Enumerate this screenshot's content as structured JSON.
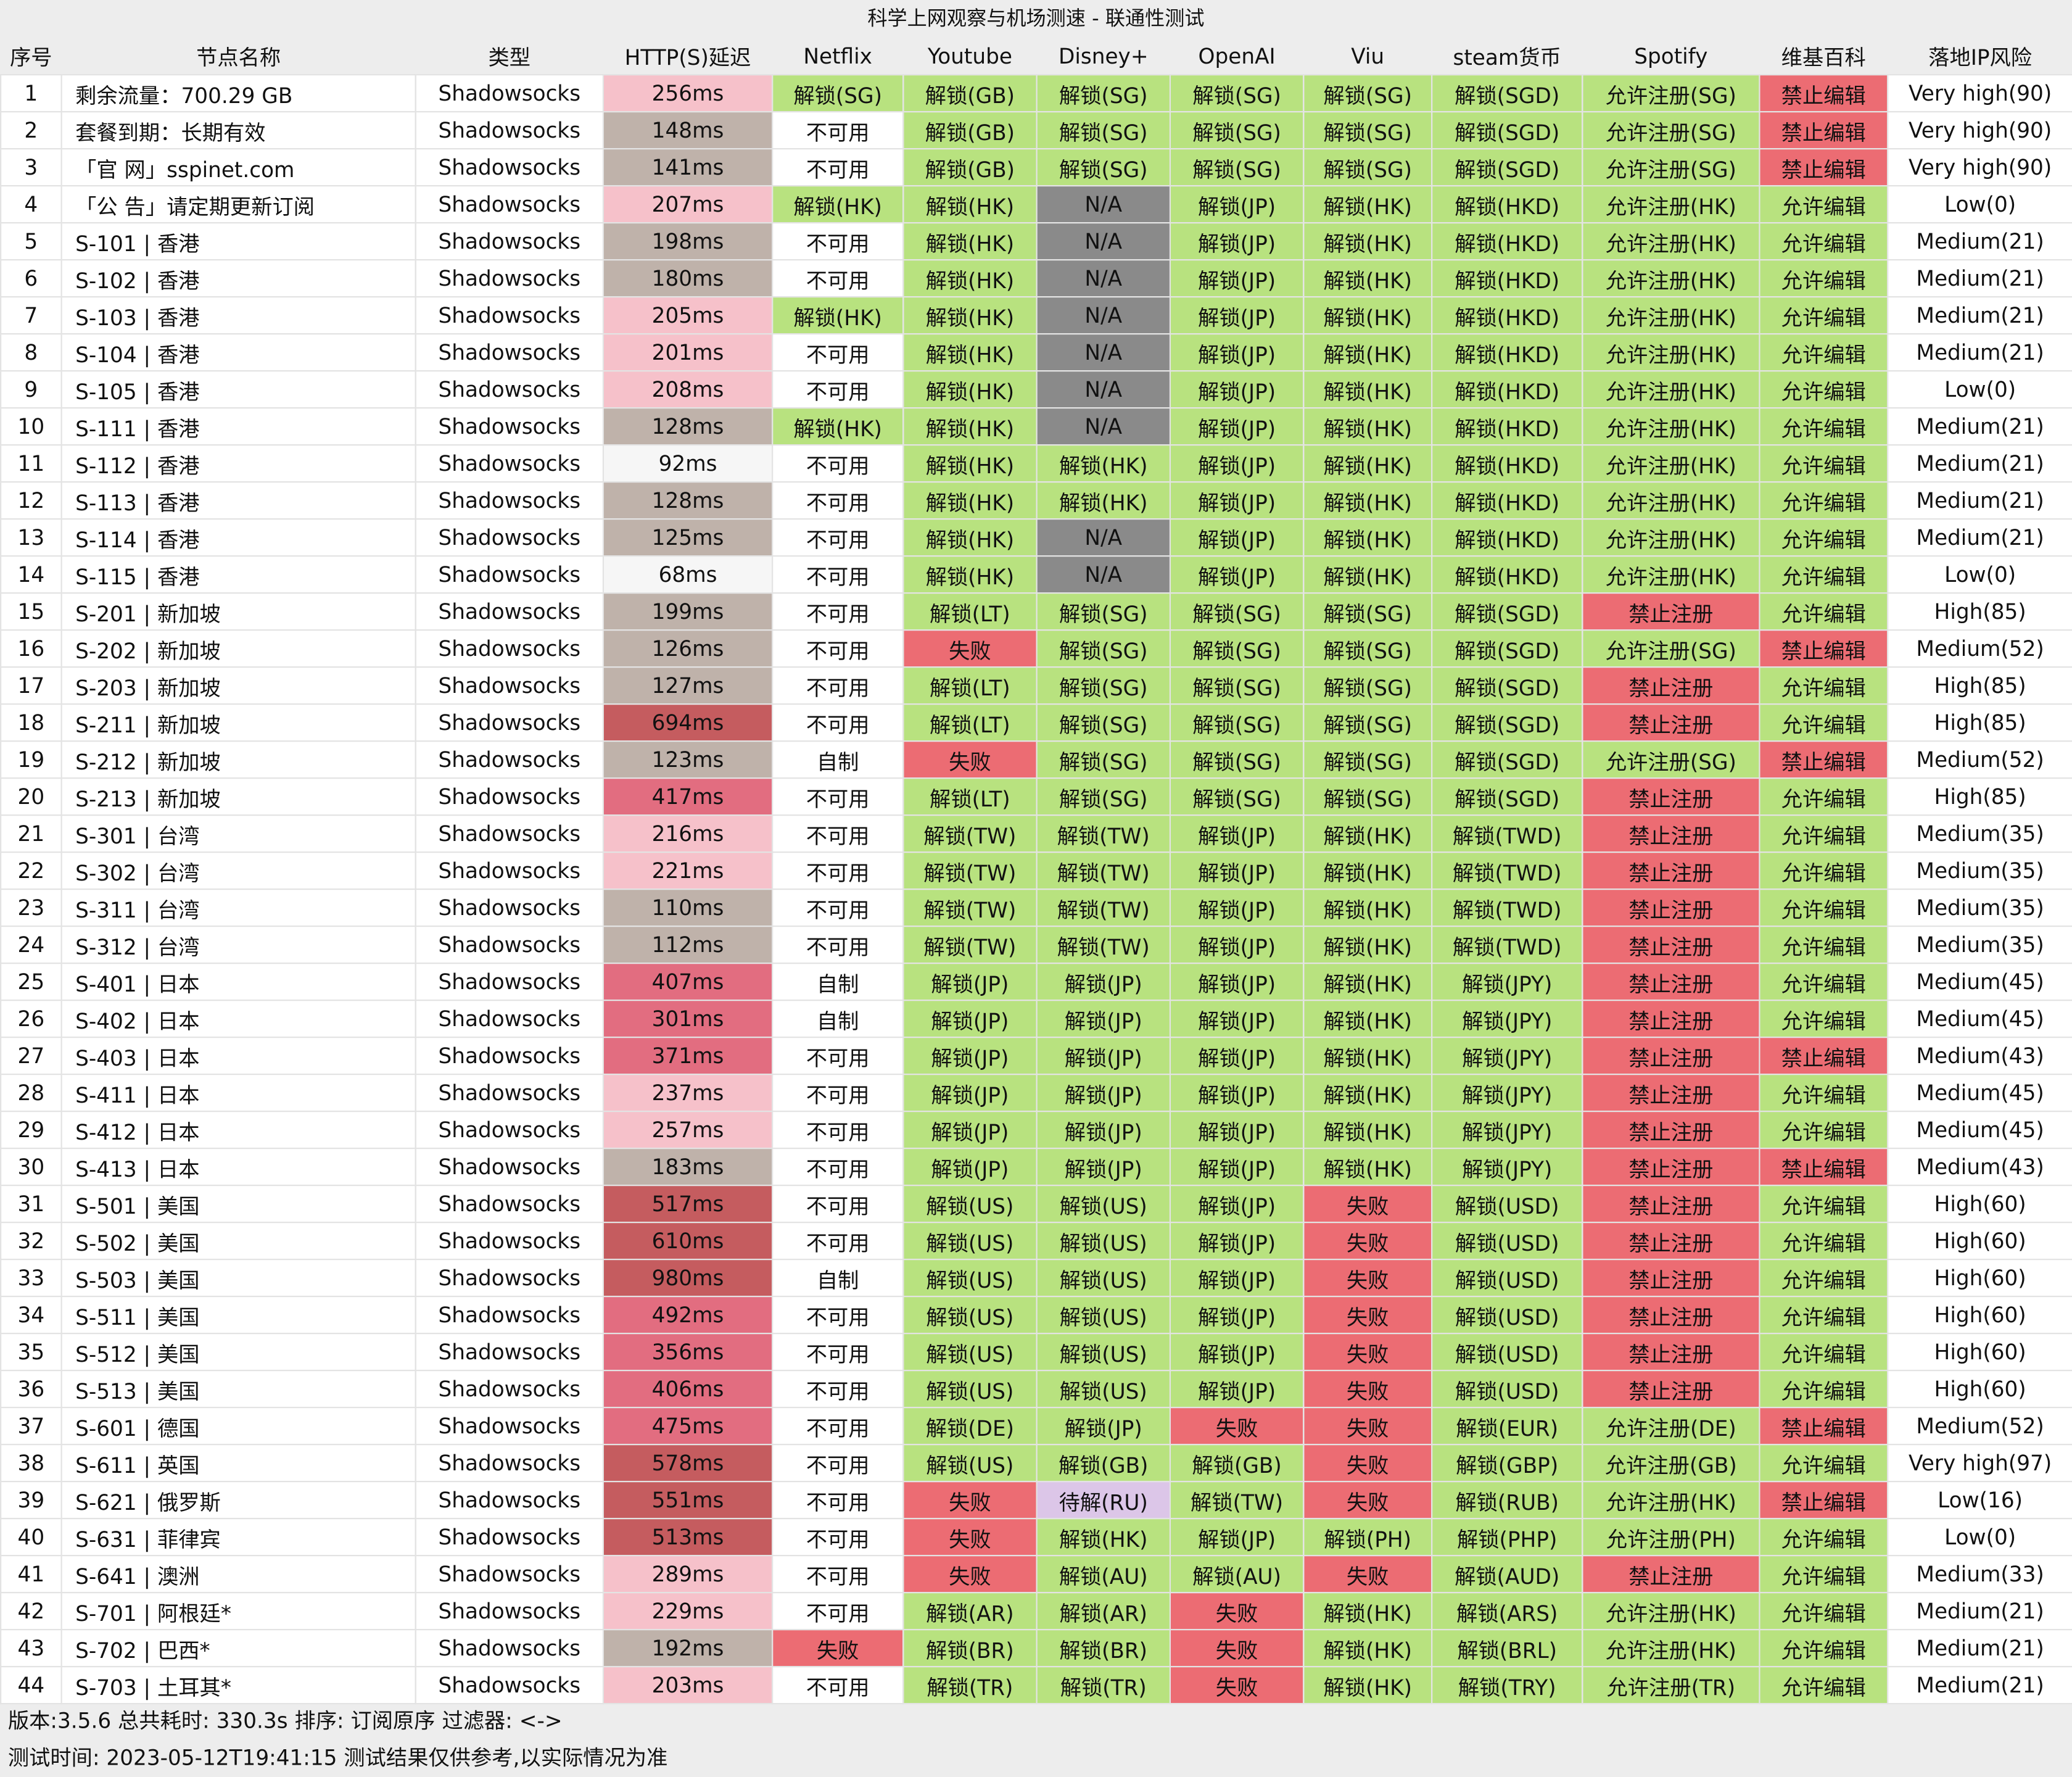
{
  "title": "科学上网观察与机场测速 - 联通性测试",
  "headers": [
    "序号",
    "节点名称",
    "类型",
    "HTTP(S)延迟",
    "Netflix",
    "Youtube",
    "Disney+",
    "OpenAI",
    "Viu",
    "steam货币",
    "Spotify",
    "维基百科",
    "落地IP风险"
  ],
  "rows": [
    [
      "1",
      "剩余流量：700.29 GB",
      "Shadowsocks",
      "256ms",
      "解锁(SG)",
      "解锁(GB)",
      "解锁(SG)",
      "解锁(SG)",
      "解锁(SG)",
      "解锁(SGD)",
      "允许注册(SG)",
      "禁止编辑",
      "Very high(90)"
    ],
    [
      "2",
      "套餐到期：长期有效",
      "Shadowsocks",
      "148ms",
      "不可用",
      "解锁(GB)",
      "解锁(SG)",
      "解锁(SG)",
      "解锁(SG)",
      "解锁(SGD)",
      "允许注册(SG)",
      "禁止编辑",
      "Very high(90)"
    ],
    [
      "3",
      "「官 网」sspinet.com",
      "Shadowsocks",
      "141ms",
      "不可用",
      "解锁(GB)",
      "解锁(SG)",
      "解锁(SG)",
      "解锁(SG)",
      "解锁(SGD)",
      "允许注册(SG)",
      "禁止编辑",
      "Very high(90)"
    ],
    [
      "4",
      "「公 告」请定期更新订阅",
      "Shadowsocks",
      "207ms",
      "解锁(HK)",
      "解锁(HK)",
      "N/A",
      "解锁(JP)",
      "解锁(HK)",
      "解锁(HKD)",
      "允许注册(HK)",
      "允许编辑",
      "Low(0)"
    ],
    [
      "5",
      "S-101 | 香港",
      "Shadowsocks",
      "198ms",
      "不可用",
      "解锁(HK)",
      "N/A",
      "解锁(JP)",
      "解锁(HK)",
      "解锁(HKD)",
      "允许注册(HK)",
      "允许编辑",
      "Medium(21)"
    ],
    [
      "6",
      "S-102 | 香港",
      "Shadowsocks",
      "180ms",
      "不可用",
      "解锁(HK)",
      "N/A",
      "解锁(JP)",
      "解锁(HK)",
      "解锁(HKD)",
      "允许注册(HK)",
      "允许编辑",
      "Medium(21)"
    ],
    [
      "7",
      "S-103 | 香港",
      "Shadowsocks",
      "205ms",
      "解锁(HK)",
      "解锁(HK)",
      "N/A",
      "解锁(JP)",
      "解锁(HK)",
      "解锁(HKD)",
      "允许注册(HK)",
      "允许编辑",
      "Medium(21)"
    ],
    [
      "8",
      "S-104 | 香港",
      "Shadowsocks",
      "201ms",
      "不可用",
      "解锁(HK)",
      "N/A",
      "解锁(JP)",
      "解锁(HK)",
      "解锁(HKD)",
      "允许注册(HK)",
      "允许编辑",
      "Medium(21)"
    ],
    [
      "9",
      "S-105 | 香港",
      "Shadowsocks",
      "208ms",
      "不可用",
      "解锁(HK)",
      "N/A",
      "解锁(JP)",
      "解锁(HK)",
      "解锁(HKD)",
      "允许注册(HK)",
      "允许编辑",
      "Low(0)"
    ],
    [
      "10",
      "S-111 | 香港",
      "Shadowsocks",
      "128ms",
      "解锁(HK)",
      "解锁(HK)",
      "N/A",
      "解锁(JP)",
      "解锁(HK)",
      "解锁(HKD)",
      "允许注册(HK)",
      "允许编辑",
      "Medium(21)"
    ],
    [
      "11",
      "S-112 | 香港",
      "Shadowsocks",
      "92ms",
      "不可用",
      "解锁(HK)",
      "解锁(HK)",
      "解锁(JP)",
      "解锁(HK)",
      "解锁(HKD)",
      "允许注册(HK)",
      "允许编辑",
      "Medium(21)"
    ],
    [
      "12",
      "S-113 | 香港",
      "Shadowsocks",
      "128ms",
      "不可用",
      "解锁(HK)",
      "解锁(HK)",
      "解锁(JP)",
      "解锁(HK)",
      "解锁(HKD)",
      "允许注册(HK)",
      "允许编辑",
      "Medium(21)"
    ],
    [
      "13",
      "S-114 | 香港",
      "Shadowsocks",
      "125ms",
      "不可用",
      "解锁(HK)",
      "N/A",
      "解锁(JP)",
      "解锁(HK)",
      "解锁(HKD)",
      "允许注册(HK)",
      "允许编辑",
      "Medium(21)"
    ],
    [
      "14",
      "S-115 | 香港",
      "Shadowsocks",
      "68ms",
      "不可用",
      "解锁(HK)",
      "N/A",
      "解锁(JP)",
      "解锁(HK)",
      "解锁(HKD)",
      "允许注册(HK)",
      "允许编辑",
      "Low(0)"
    ],
    [
      "15",
      "S-201 | 新加坡",
      "Shadowsocks",
      "199ms",
      "不可用",
      "解锁(LT)",
      "解锁(SG)",
      "解锁(SG)",
      "解锁(SG)",
      "解锁(SGD)",
      "禁止注册",
      "允许编辑",
      "High(85)"
    ],
    [
      "16",
      "S-202 | 新加坡",
      "Shadowsocks",
      "126ms",
      "不可用",
      "失败",
      "解锁(SG)",
      "解锁(SG)",
      "解锁(SG)",
      "解锁(SGD)",
      "允许注册(SG)",
      "禁止编辑",
      "Medium(52)"
    ],
    [
      "17",
      "S-203 | 新加坡",
      "Shadowsocks",
      "127ms",
      "不可用",
      "解锁(LT)",
      "解锁(SG)",
      "解锁(SG)",
      "解锁(SG)",
      "解锁(SGD)",
      "禁止注册",
      "允许编辑",
      "High(85)"
    ],
    [
      "18",
      "S-211 | 新加坡",
      "Shadowsocks",
      "694ms",
      "不可用",
      "解锁(LT)",
      "解锁(SG)",
      "解锁(SG)",
      "解锁(SG)",
      "解锁(SGD)",
      "禁止注册",
      "允许编辑",
      "High(85)"
    ],
    [
      "19",
      "S-212 | 新加坡",
      "Shadowsocks",
      "123ms",
      "自制",
      "失败",
      "解锁(SG)",
      "解锁(SG)",
      "解锁(SG)",
      "解锁(SGD)",
      "允许注册(SG)",
      "禁止编辑",
      "Medium(52)"
    ],
    [
      "20",
      "S-213 | 新加坡",
      "Shadowsocks",
      "417ms",
      "不可用",
      "解锁(LT)",
      "解锁(SG)",
      "解锁(SG)",
      "解锁(SG)",
      "解锁(SGD)",
      "禁止注册",
      "允许编辑",
      "High(85)"
    ],
    [
      "21",
      "S-301 | 台湾",
      "Shadowsocks",
      "216ms",
      "不可用",
      "解锁(TW)",
      "解锁(TW)",
      "解锁(JP)",
      "解锁(HK)",
      "解锁(TWD)",
      "禁止注册",
      "允许编辑",
      "Medium(35)"
    ],
    [
      "22",
      "S-302 | 台湾",
      "Shadowsocks",
      "221ms",
      "不可用",
      "解锁(TW)",
      "解锁(TW)",
      "解锁(JP)",
      "解锁(HK)",
      "解锁(TWD)",
      "禁止注册",
      "允许编辑",
      "Medium(35)"
    ],
    [
      "23",
      "S-311 | 台湾",
      "Shadowsocks",
      "110ms",
      "不可用",
      "解锁(TW)",
      "解锁(TW)",
      "解锁(JP)",
      "解锁(HK)",
      "解锁(TWD)",
      "禁止注册",
      "允许编辑",
      "Medium(35)"
    ],
    [
      "24",
      "S-312 | 台湾",
      "Shadowsocks",
      "112ms",
      "不可用",
      "解锁(TW)",
      "解锁(TW)",
      "解锁(JP)",
      "解锁(HK)",
      "解锁(TWD)",
      "禁止注册",
      "允许编辑",
      "Medium(35)"
    ],
    [
      "25",
      "S-401 | 日本",
      "Shadowsocks",
      "407ms",
      "自制",
      "解锁(JP)",
      "解锁(JP)",
      "解锁(JP)",
      "解锁(HK)",
      "解锁(JPY)",
      "禁止注册",
      "允许编辑",
      "Medium(45)"
    ],
    [
      "26",
      "S-402 | 日本",
      "Shadowsocks",
      "301ms",
      "自制",
      "解锁(JP)",
      "解锁(JP)",
      "解锁(JP)",
      "解锁(HK)",
      "解锁(JPY)",
      "禁止注册",
      "允许编辑",
      "Medium(45)"
    ],
    [
      "27",
      "S-403 | 日本",
      "Shadowsocks",
      "371ms",
      "不可用",
      "解锁(JP)",
      "解锁(JP)",
      "解锁(JP)",
      "解锁(HK)",
      "解锁(JPY)",
      "禁止注册",
      "禁止编辑",
      "Medium(43)"
    ],
    [
      "28",
      "S-411 | 日本",
      "Shadowsocks",
      "237ms",
      "不可用",
      "解锁(JP)",
      "解锁(JP)",
      "解锁(JP)",
      "解锁(HK)",
      "解锁(JPY)",
      "禁止注册",
      "允许编辑",
      "Medium(45)"
    ],
    [
      "29",
      "S-412 | 日本",
      "Shadowsocks",
      "257ms",
      "不可用",
      "解锁(JP)",
      "解锁(JP)",
      "解锁(JP)",
      "解锁(HK)",
      "解锁(JPY)",
      "禁止注册",
      "允许编辑",
      "Medium(45)"
    ],
    [
      "30",
      "S-413 | 日本",
      "Shadowsocks",
      "183ms",
      "不可用",
      "解锁(JP)",
      "解锁(JP)",
      "解锁(JP)",
      "解锁(HK)",
      "解锁(JPY)",
      "禁止注册",
      "禁止编辑",
      "Medium(43)"
    ],
    [
      "31",
      "S-501 | 美国",
      "Shadowsocks",
      "517ms",
      "不可用",
      "解锁(US)",
      "解锁(US)",
      "解锁(JP)",
      "失败",
      "解锁(USD)",
      "禁止注册",
      "允许编辑",
      "High(60)"
    ],
    [
      "32",
      "S-502 | 美国",
      "Shadowsocks",
      "610ms",
      "不可用",
      "解锁(US)",
      "解锁(US)",
      "解锁(JP)",
      "失败",
      "解锁(USD)",
      "禁止注册",
      "允许编辑",
      "High(60)"
    ],
    [
      "33",
      "S-503 | 美国",
      "Shadowsocks",
      "980ms",
      "自制",
      "解锁(US)",
      "解锁(US)",
      "解锁(JP)",
      "失败",
      "解锁(USD)",
      "禁止注册",
      "允许编辑",
      "High(60)"
    ],
    [
      "34",
      "S-511 | 美国",
      "Shadowsocks",
      "492ms",
      "不可用",
      "解锁(US)",
      "解锁(US)",
      "解锁(JP)",
      "失败",
      "解锁(USD)",
      "禁止注册",
      "允许编辑",
      "High(60)"
    ],
    [
      "35",
      "S-512 | 美国",
      "Shadowsocks",
      "356ms",
      "不可用",
      "解锁(US)",
      "解锁(US)",
      "解锁(JP)",
      "失败",
      "解锁(USD)",
      "禁止注册",
      "允许编辑",
      "High(60)"
    ],
    [
      "36",
      "S-513 | 美国",
      "Shadowsocks",
      "406ms",
      "不可用",
      "解锁(US)",
      "解锁(US)",
      "解锁(JP)",
      "失败",
      "解锁(USD)",
      "禁止注册",
      "允许编辑",
      "High(60)"
    ],
    [
      "37",
      "S-601 | 德国",
      "Shadowsocks",
      "475ms",
      "不可用",
      "解锁(DE)",
      "解锁(JP)",
      "失败",
      "失败",
      "解锁(EUR)",
      "允许注册(DE)",
      "禁止编辑",
      "Medium(52)"
    ],
    [
      "38",
      "S-611 | 英国",
      "Shadowsocks",
      "578ms",
      "不可用",
      "解锁(US)",
      "解锁(GB)",
      "解锁(GB)",
      "失败",
      "解锁(GBP)",
      "允许注册(GB)",
      "允许编辑",
      "Very high(97)"
    ],
    [
      "39",
      "S-621 | 俄罗斯",
      "Shadowsocks",
      "551ms",
      "不可用",
      "失败",
      "待解(RU)",
      "解锁(TW)",
      "失败",
      "解锁(RUB)",
      "允许注册(HK)",
      "禁止编辑",
      "Low(16)"
    ],
    [
      "40",
      "S-631 | 菲律宾",
      "Shadowsocks",
      "513ms",
      "不可用",
      "失败",
      "解锁(HK)",
      "解锁(JP)",
      "解锁(PH)",
      "解锁(PHP)",
      "允许注册(PH)",
      "允许编辑",
      "Low(0)"
    ],
    [
      "41",
      "S-641 | 澳洲",
      "Shadowsocks",
      "289ms",
      "不可用",
      "失败",
      "解锁(AU)",
      "解锁(AU)",
      "失败",
      "解锁(AUD)",
      "禁止注册",
      "允许编辑",
      "Medium(33)"
    ],
    [
      "42",
      "S-701 | 阿根廷*",
      "Shadowsocks",
      "229ms",
      "不可用",
      "解锁(AR)",
      "解锁(AR)",
      "失败",
      "解锁(HK)",
      "解锁(ARS)",
      "允许注册(HK)",
      "允许编辑",
      "Medium(21)"
    ],
    [
      "43",
      "S-702 | 巴西*",
      "Shadowsocks",
      "192ms",
      "失败",
      "解锁(BR)",
      "解锁(BR)",
      "失败",
      "解锁(HK)",
      "解锁(BRL)",
      "允许注册(HK)",
      "允许编辑",
      "Medium(21)"
    ],
    [
      "44",
      "S-703 | 土耳其*",
      "Shadowsocks",
      "203ms",
      "不可用",
      "解锁(TR)",
      "解锁(TR)",
      "失败",
      "解锁(HK)",
      "解锁(TRY)",
      "允许注册(TR)",
      "允许编辑",
      "Medium(21)"
    ]
  ],
  "footer": {
    "line1": "版本:3.5.6   总共耗时: 330.3s   排序: 订阅原序   过滤器: <->",
    "line2": "测试时间: 2023-05-12T19:41:15   测试结果仅供参考,以实际情况为准"
  },
  "colors": {
    "unlock": "#b8e27f",
    "fail": "#ec6c73",
    "na": "#8a8a8a",
    "pending": "#dcc6e8",
    "latency": [
      "#f6f6f6",
      "#bfb2aa",
      "#f6c1ca",
      "#e26d80",
      "#c55c5f"
    ]
  }
}
